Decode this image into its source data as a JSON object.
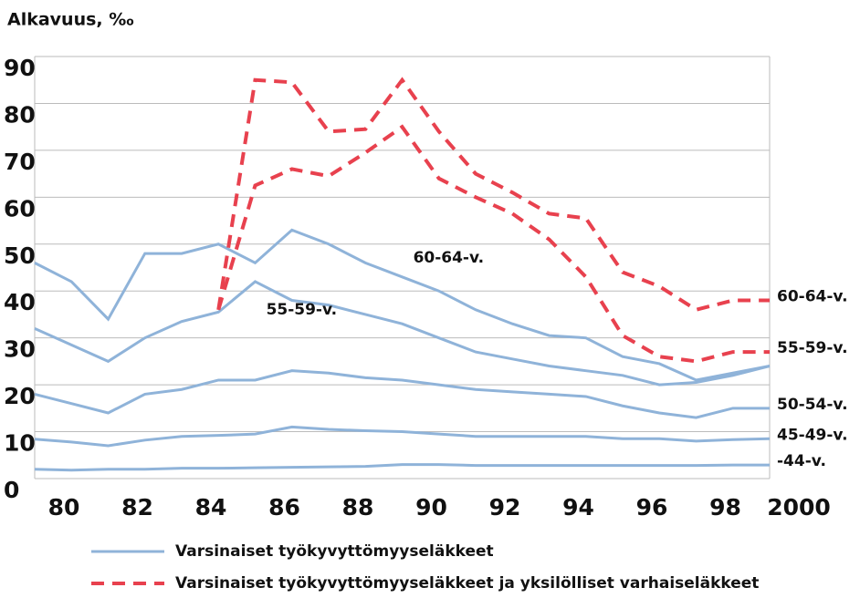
{
  "chart_data": {
    "type": "line",
    "title": "Alkavuus, ‰",
    "x": [
      1980,
      1981,
      1982,
      1983,
      1984,
      1985,
      1986,
      1987,
      1988,
      1989,
      1990,
      1991,
      1992,
      1993,
      1994,
      1995,
      1996,
      1997,
      1998,
      1999,
      2000
    ],
    "xlim": [
      1980,
      2000
    ],
    "xticks": [
      {
        "value": 1980,
        "label": "80"
      },
      {
        "value": 1982,
        "label": "82"
      },
      {
        "value": 1984,
        "label": "84"
      },
      {
        "value": 1986,
        "label": "86"
      },
      {
        "value": 1988,
        "label": "88"
      },
      {
        "value": 1990,
        "label": "90"
      },
      {
        "value": 1992,
        "label": "92"
      },
      {
        "value": 1994,
        "label": "94"
      },
      {
        "value": 1996,
        "label": "96"
      },
      {
        "value": 1998,
        "label": "98"
      },
      {
        "value": 2000,
        "label": "2000"
      }
    ],
    "ylim": [
      0,
      90
    ],
    "yticks": [
      0,
      10,
      20,
      30,
      40,
      50,
      60,
      70,
      80,
      90
    ],
    "grid": true,
    "series": [
      {
        "color": "#8fb3d9",
        "style": "solid",
        "values": [
          2,
          1.8,
          2,
          2,
          2.2,
          2.2,
          2.3,
          2.4,
          2.5,
          2.6,
          3,
          3,
          2.8,
          2.8,
          2.8,
          2.8,
          2.8,
          2.8,
          2.8,
          2.9,
          2.9
        ]
      },
      {
        "color": "#8fb3d9",
        "style": "solid",
        "values": [
          8.4,
          7.8,
          7,
          8.2,
          9,
          9.2,
          9.5,
          11,
          10.5,
          10.2,
          10,
          9.5,
          9,
          9,
          9,
          9,
          8.5,
          8.5,
          8,
          8.3,
          8.5
        ]
      },
      {
        "color": "#8fb3d9",
        "style": "solid",
        "values": [
          18,
          16,
          14,
          18,
          19,
          21,
          21,
          23,
          22.5,
          21.5,
          21,
          20,
          19,
          18.5,
          18,
          17.5,
          15.5,
          14,
          13,
          15,
          15
        ]
      },
      {
        "color": "#8fb3d9",
        "style": "solid",
        "values": [
          32,
          28.5,
          25,
          30,
          33.5,
          35.5,
          42,
          38,
          37,
          35,
          33,
          30,
          27,
          25.5,
          24,
          23,
          22,
          20,
          20.5,
          22,
          24
        ]
      },
      {
        "color": "#8fb3d9",
        "style": "solid",
        "values": [
          46,
          42,
          34,
          48,
          48,
          50,
          46,
          53,
          50,
          46,
          43,
          40,
          36,
          33,
          30.5,
          30,
          26,
          24.5,
          21,
          22.5,
          24
        ]
      },
      {
        "color": "#e8414e",
        "style": "dashed",
        "values": [
          null,
          null,
          null,
          null,
          null,
          36,
          62.5,
          66,
          64.5,
          69.5,
          75,
          64,
          60,
          56.5,
          51,
          43,
          30.5,
          26,
          25,
          27,
          27
        ]
      },
      {
        "color": "#e8414e",
        "style": "dashed",
        "values": [
          null,
          null,
          null,
          null,
          null,
          36,
          85,
          84.5,
          74,
          74.5,
          85,
          74,
          65,
          61,
          56.5,
          55.5,
          44,
          41,
          36,
          38,
          38
        ]
      }
    ],
    "annotations": [
      {
        "text": "60-64-v.",
        "x": 1990.3,
        "y": 47
      },
      {
        "text": "55-59-v.",
        "x": 1986.3,
        "y": 36
      }
    ],
    "right_labels": [
      {
        "text": "60-64-v.",
        "y": 38
      },
      {
        "text": "55-59-v.",
        "y": 27
      },
      {
        "text": "50-54-v.",
        "y": 15
      },
      {
        "text": "45-49-v.",
        "y": 8.5
      },
      {
        "text": "-44-v.",
        "y": 2.9
      }
    ],
    "legend": [
      {
        "text": "Varsinaiset työkyvyttömyyseläkkeet",
        "color": "#8fb3d9",
        "style": "solid"
      },
      {
        "text": "Varsinaiset työkyvyttömyyseläkkeet ja yksilölliset varhaiseläkkeet",
        "color": "#e8414e",
        "style": "dashed"
      }
    ]
  }
}
